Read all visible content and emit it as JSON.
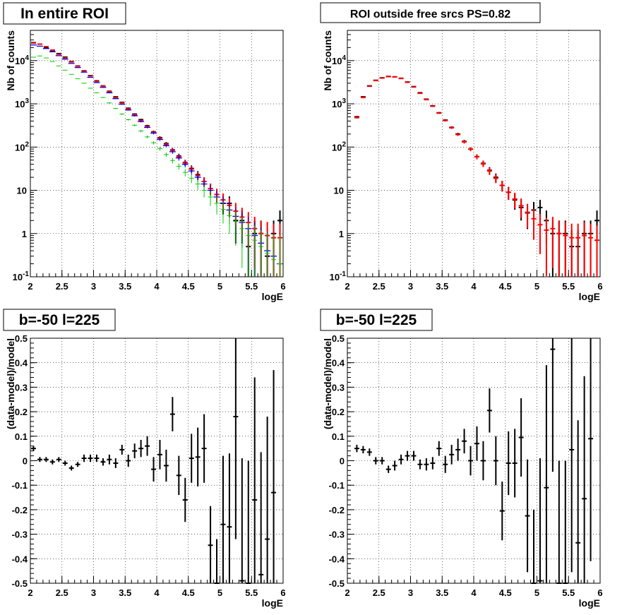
{
  "chart_data": [
    {
      "type": "scatter",
      "title": "In entire ROI",
      "xlabel": "logE",
      "ylabel": "Nb of counts",
      "xlim": [
        2,
        6
      ],
      "ylim": [
        0.1,
        50000
      ],
      "yscale": "log",
      "grid": true,
      "x_ticks": [
        "2",
        "2.5",
        "3",
        "3.5",
        "4",
        "4.5",
        "5",
        "5.5",
        "6"
      ],
      "y_ticks": [
        "10^-1",
        "1",
        "10",
        "10^2",
        "10^3",
        "10^4"
      ],
      "x": [
        2.05,
        2.15,
        2.25,
        2.35,
        2.45,
        2.55,
        2.65,
        2.75,
        2.85,
        2.95,
        3.05,
        3.15,
        3.25,
        3.35,
        3.45,
        3.55,
        3.65,
        3.75,
        3.85,
        3.95,
        4.05,
        4.15,
        4.25,
        4.35,
        4.45,
        4.55,
        4.65,
        4.75,
        4.85,
        4.95,
        5.05,
        5.15,
        5.25,
        5.35,
        5.45,
        5.55,
        5.65,
        5.75,
        5.85,
        5.95
      ],
      "series": [
        {
          "color": "#000000",
          "style": "errorbar",
          "values": [
            26000,
            24000,
            20000,
            17000,
            14500,
            12000,
            9500,
            7500,
            5800,
            4500,
            3400,
            2600,
            1950,
            1450,
            1080,
            790,
            580,
            430,
            310,
            225,
            165,
            120,
            86,
            62,
            44,
            32,
            23,
            16,
            11,
            8,
            5,
            5,
            2,
            2,
            0.5,
            1,
            1,
            0.3,
            1,
            2
          ]
        },
        {
          "color": "#ff0000",
          "style": "errorbar",
          "values": [
            25500,
            24000,
            21000,
            17500,
            14000,
            11500,
            9300,
            7400,
            5700,
            4400,
            3300,
            2550,
            1900,
            1400,
            1050,
            760,
            560,
            410,
            300,
            220,
            160,
            115,
            84,
            60,
            43,
            31,
            22,
            16,
            11,
            8,
            6,
            4.5,
            3.3,
            2.4,
            1.8,
            1.3,
            1.0,
            0.9,
            0.8,
            0.8
          ]
        },
        {
          "color": "#0000ff",
          "style": "step",
          "values": [
            23000,
            21500,
            19000,
            16000,
            13000,
            10800,
            8600,
            6900,
            5400,
            4100,
            3100,
            2400,
            1800,
            1320,
            980,
            720,
            530,
            390,
            285,
            210,
            150,
            108,
            78,
            56,
            40,
            28,
            20,
            14,
            10,
            7,
            5,
            3.5,
            2.5,
            1.8,
            1.3,
            0.9,
            0.6,
            0.4,
            0.3,
            0.2
          ]
        },
        {
          "color": "#00cc00",
          "style": "errorbar",
          "values": [
            12000,
            12800,
            11500,
            9500,
            7500,
            6000,
            4800,
            3800,
            3000,
            2300,
            1800,
            1400,
            1050,
            780,
            580,
            430,
            320,
            235,
            172,
            126,
            92,
            67,
            49,
            36,
            26,
            19,
            14,
            10,
            7,
            5,
            3.6,
            2.6,
            1.9,
            1.3,
            0.9,
            0.7,
            0.5,
            0.35,
            0.25,
            0.2
          ]
        }
      ]
    },
    {
      "type": "scatter",
      "title": "ROI outside free srcs PS=0.82",
      "xlabel": "logE",
      "ylabel": "Nb of counts",
      "xlim": [
        2,
        6
      ],
      "ylim": [
        0.1,
        50000
      ],
      "yscale": "log",
      "grid": true,
      "x_ticks": [
        "2",
        "2.5",
        "3",
        "3.5",
        "4",
        "4.5",
        "5",
        "5.5",
        "6"
      ],
      "y_ticks": [
        "10^-1",
        "1",
        "10",
        "10^2",
        "10^3",
        "10^4"
      ],
      "x": [
        2.15,
        2.25,
        2.35,
        2.45,
        2.55,
        2.65,
        2.75,
        2.85,
        2.95,
        3.05,
        3.15,
        3.25,
        3.35,
        3.45,
        3.55,
        3.65,
        3.75,
        3.85,
        3.95,
        4.05,
        4.15,
        4.25,
        4.35,
        4.45,
        4.55,
        4.65,
        4.75,
        4.85,
        4.95,
        5.05,
        5.15,
        5.25,
        5.35,
        5.45,
        5.55,
        5.65,
        5.75,
        5.85,
        5.95
      ],
      "series": [
        {
          "color": "#000000",
          "style": "errorbar",
          "values": [
            500,
            1450,
            2600,
            3500,
            4000,
            4300,
            4200,
            3900,
            3200,
            2500,
            1800,
            1280,
            900,
            620,
            420,
            285,
            200,
            135,
            90,
            60,
            42,
            29,
            20,
            13,
            9,
            6,
            4,
            3,
            3.5,
            4,
            2,
            1,
            1,
            1,
            0.5,
            0.5,
            1,
            1,
            2
          ]
        },
        {
          "color": "#ff0000",
          "style": "errorbar",
          "values": [
            480,
            1400,
            2550,
            3450,
            3950,
            4250,
            4200,
            3850,
            3150,
            2450,
            1750,
            1250,
            880,
            610,
            410,
            280,
            195,
            132,
            90,
            60,
            41,
            28,
            19,
            13,
            9,
            6.3,
            4.4,
            3.1,
            2.2,
            1.6,
            1.2,
            1.3,
            1.0,
            0.9,
            0.8,
            0.8,
            0.9,
            0.8,
            0.7
          ]
        }
      ]
    },
    {
      "type": "scatter",
      "title": "b=-50 l=225",
      "xlabel": "logE",
      "ylabel": "(data-model)/model",
      "xlim": [
        2,
        6
      ],
      "ylim": [
        -0.5,
        0.5
      ],
      "grid": true,
      "x_ticks": [
        "2",
        "2.5",
        "3",
        "3.5",
        "4",
        "4.5",
        "5",
        "5.5",
        "6"
      ],
      "y_ticks": [
        "-0.5",
        "-0.4",
        "-0.3",
        "-0.2",
        "-0.1",
        "0",
        "0.1",
        "0.2",
        "0.3",
        "0.4",
        "0.5"
      ],
      "x": [
        2.05,
        2.15,
        2.25,
        2.35,
        2.45,
        2.55,
        2.65,
        2.75,
        2.85,
        2.95,
        3.05,
        3.15,
        3.25,
        3.35,
        3.45,
        3.55,
        3.65,
        3.75,
        3.85,
        3.95,
        4.05,
        4.15,
        4.25,
        4.35,
        4.45,
        4.55,
        4.65,
        4.75,
        4.85,
        4.95,
        5.05,
        5.15,
        5.25,
        5.35,
        5.45,
        5.55,
        5.65,
        5.75,
        5.85
      ],
      "series": [
        {
          "color": "#000000",
          "style": "errorbar",
          "values": [
            0.05,
            0.005,
            0.005,
            -0.005,
            0.005,
            -0.01,
            -0.03,
            -0.015,
            0.01,
            0.01,
            0.01,
            -0.005,
            0.005,
            -0.01,
            0.045,
            0.0,
            0.04,
            0.05,
            0.06,
            -0.035,
            0.025,
            -0.02,
            0.19,
            -0.06,
            -0.16,
            0.01,
            0.015,
            0.05,
            -0.345,
            -0.5,
            -0.26,
            -0.27,
            0.18,
            -0.49,
            -0.5,
            -0.16,
            -0.465,
            -0.32,
            -0.13
          ],
          "errors": [
            0.01,
            0.01,
            0.01,
            0.01,
            0.01,
            0.01,
            0.01,
            0.01,
            0.015,
            0.015,
            0.015,
            0.015,
            0.02,
            0.02,
            0.02,
            0.025,
            0.03,
            0.035,
            0.04,
            0.05,
            0.06,
            0.065,
            0.07,
            0.08,
            0.09,
            0.1,
            0.12,
            0.14,
            0.16,
            0.18,
            0.28,
            0.3,
            0.5,
            0.5,
            0.5,
            0.5,
            0.5,
            0.5,
            0.5
          ]
        }
      ]
    },
    {
      "type": "scatter",
      "title": "b=-50 l=225",
      "xlabel": "logE",
      "ylabel": "(data-model)/model",
      "xlim": [
        2,
        6
      ],
      "ylim": [
        -0.5,
        0.5
      ],
      "grid": true,
      "x_ticks": [
        "2",
        "2.5",
        "3",
        "3.5",
        "4",
        "4.5",
        "5",
        "5.5",
        "6"
      ],
      "y_ticks": [
        "-0.5",
        "-0.4",
        "-0.3",
        "-0.2",
        "-0.1",
        "0",
        "0.1",
        "0.2",
        "0.3",
        "0.4",
        "0.5"
      ],
      "x": [
        2.15,
        2.25,
        2.35,
        2.45,
        2.55,
        2.65,
        2.75,
        2.85,
        2.95,
        3.05,
        3.15,
        3.25,
        3.35,
        3.45,
        3.55,
        3.65,
        3.75,
        3.85,
        3.95,
        4.05,
        4.15,
        4.25,
        4.35,
        4.45,
        4.55,
        4.65,
        4.75,
        4.85,
        4.95,
        5.05,
        5.15,
        5.25,
        5.35,
        5.45,
        5.55,
        5.65,
        5.75,
        5.85
      ],
      "series": [
        {
          "color": "#000000",
          "style": "errorbar",
          "values": [
            0.05,
            0.045,
            0.035,
            0.0,
            0.0,
            -0.035,
            -0.02,
            0.005,
            0.02,
            0.02,
            -0.015,
            -0.015,
            -0.01,
            0.05,
            -0.015,
            0.025,
            0.045,
            0.08,
            0.0,
            0.07,
            0.0,
            0.205,
            0.0,
            -0.205,
            -0.01,
            -0.01,
            0.095,
            -0.225,
            -0.5,
            -0.49,
            -0.11,
            0.455,
            -0.5,
            -0.5,
            0.045,
            -0.335,
            -0.155,
            0.09
          ],
          "errors": [
            0.015,
            0.015,
            0.015,
            0.015,
            0.015,
            0.015,
            0.02,
            0.02,
            0.02,
            0.02,
            0.02,
            0.025,
            0.025,
            0.03,
            0.035,
            0.04,
            0.045,
            0.05,
            0.06,
            0.07,
            0.08,
            0.09,
            0.1,
            0.12,
            0.13,
            0.14,
            0.16,
            0.23,
            0.3,
            0.5,
            0.5,
            0.5,
            0.5,
            0.5,
            0.5,
            0.5,
            0.5,
            0.5
          ]
        }
      ]
    }
  ]
}
